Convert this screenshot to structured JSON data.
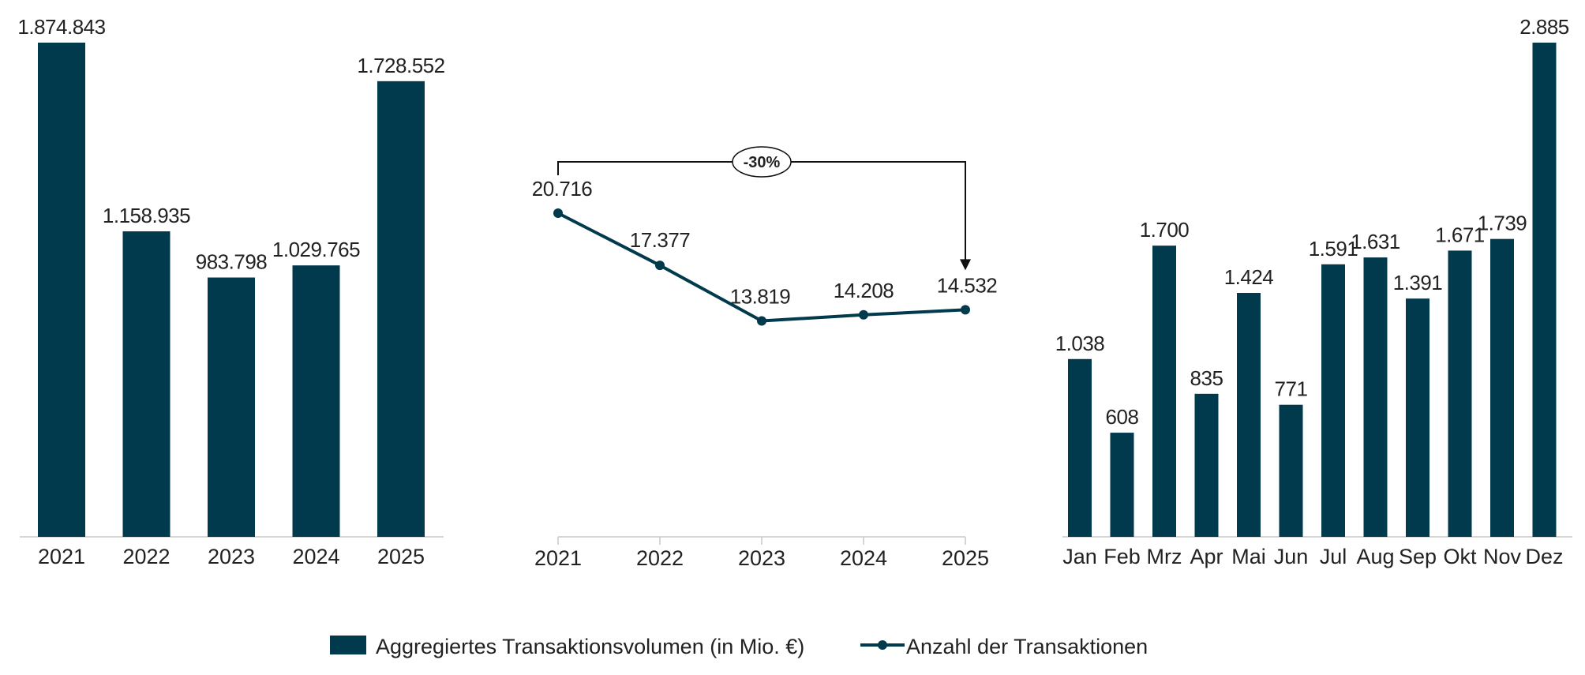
{
  "colors": {
    "bar": "#023a4d",
    "line": "#023a4d",
    "axis": "#c8c8c8",
    "text": "#222222"
  },
  "legend": {
    "bar_label": "Aggregiertes Transaktionsvolumen (in Mio. €)",
    "line_label": "Anzahl der Transaktionen"
  },
  "chart_data": [
    {
      "type": "bar",
      "categories": [
        "2021",
        "2022",
        "2023",
        "2024",
        "2025"
      ],
      "values": [
        1874843,
        1158935,
        983798,
        1029765,
        1728552
      ],
      "value_labels": [
        "1.874.843",
        "1.158.935",
        "983.798",
        "1.029.765",
        "1.728.552"
      ],
      "series_name": "Aggregiertes Transaktionsvolumen (in Mio. €)",
      "ylim": [
        0,
        1874843
      ]
    },
    {
      "type": "line",
      "categories": [
        "2021",
        "2022",
        "2023",
        "2024",
        "2025"
      ],
      "values": [
        20716,
        17377,
        13819,
        14208,
        14532
      ],
      "value_labels": [
        "20.716",
        "17.377",
        "13.819",
        "14.208",
        "14.532"
      ],
      "series_name": "Anzahl der Transaktionen",
      "annotation": {
        "text": "-30%",
        "from": "2021",
        "to": "2025"
      },
      "ylim": [
        0,
        20716
      ]
    },
    {
      "type": "bar",
      "categories": [
        "Jan",
        "Feb",
        "Mrz",
        "Apr",
        "Mai",
        "Jun",
        "Jul",
        "Aug",
        "Sep",
        "Okt",
        "Nov",
        "Dez"
      ],
      "values": [
        1038,
        608,
        1700,
        835,
        1424,
        771,
        1591,
        1631,
        1391,
        1671,
        1739,
        2885
      ],
      "value_labels": [
        "1.038",
        "608",
        "1.700",
        "835",
        "1.424",
        "771",
        "1.591",
        "1.631",
        "1.391",
        "1.671",
        "1.739",
        "2.885"
      ],
      "series_name": "Aggregiertes Transaktionsvolumen (in Mio. €)",
      "ylim": [
        0,
        2885
      ]
    }
  ]
}
